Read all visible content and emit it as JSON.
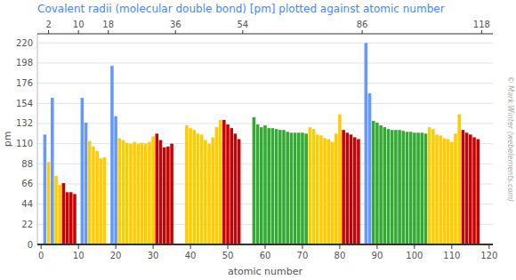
{
  "chart_data": {
    "type": "bar",
    "title": "Covalent radii (molecular double bond) [pm] plotted against atomic number",
    "x_label": "atomic number",
    "y_label": "pm",
    "annotations": [
      "© Mark Winter (webelements.com)"
    ],
    "x": [
      1,
      2,
      3,
      4,
      5,
      6,
      7,
      8,
      9,
      10,
      11,
      12,
      13,
      14,
      15,
      16,
      17,
      18,
      19,
      20,
      21,
      22,
      23,
      24,
      25,
      26,
      27,
      28,
      29,
      30,
      31,
      32,
      33,
      34,
      35,
      36,
      37,
      38,
      39,
      40,
      41,
      42,
      43,
      44,
      45,
      46,
      47,
      48,
      49,
      50,
      51,
      52,
      53,
      54,
      55,
      56,
      57,
      58,
      59,
      60,
      61,
      62,
      63,
      64,
      65,
      66,
      67,
      68,
      69,
      70,
      71,
      72,
      73,
      74,
      75,
      76,
      77,
      78,
      79,
      80,
      81,
      82,
      83,
      84,
      85,
      86,
      87,
      88,
      89,
      90,
      91,
      92,
      93,
      94,
      95,
      96,
      97,
      98,
      99,
      100,
      101,
      102,
      103,
      104,
      105,
      106,
      107,
      108,
      109,
      110,
      111,
      112,
      113,
      114,
      115,
      116,
      117,
      118
    ],
    "values": [
      120,
      90,
      160,
      75,
      65,
      67,
      57,
      57,
      55,
      0,
      160,
      133,
      113,
      107,
      102,
      94,
      95,
      0,
      195,
      140,
      116,
      114,
      111,
      110,
      112,
      110,
      111,
      110,
      112,
      118,
      121,
      114,
      106,
      107,
      110,
      0,
      0,
      0,
      130,
      127,
      125,
      121,
      120,
      114,
      110,
      117,
      128,
      136,
      136,
      131,
      127,
      121,
      115,
      0,
      0,
      0,
      139,
      131,
      128,
      130,
      127,
      127,
      126,
      125,
      125,
      123,
      122,
      122,
      122,
      122,
      121,
      128,
      126,
      120,
      119,
      116,
      115,
      112,
      121,
      142,
      125,
      122,
      120,
      117,
      115,
      0,
      220,
      165,
      135,
      133,
      130,
      128,
      126,
      125,
      125,
      125,
      124,
      123,
      123,
      122,
      122,
      122,
      121,
      128,
      126,
      120,
      119,
      116,
      115,
      112,
      121,
      142,
      125,
      122,
      120,
      117,
      115,
      0
    ],
    "colors": [
      "#6699ff",
      "#ffcc00",
      "#6699ff",
      "#ffcc00",
      "#ffcc00",
      "#cc0000",
      "#cc0000",
      "#cc0000",
      "#cc0000",
      "#6699ff",
      "#6699ff",
      "#6699ff",
      "#ffcc00",
      "#ffcc00",
      "#ffcc00",
      "#ffcc00",
      "#ffcc00",
      "#6699ff",
      "#6699ff",
      "#6699ff",
      "#ffcc00",
      "#ffcc00",
      "#ffcc00",
      "#ffcc00",
      "#ffcc00",
      "#ffcc00",
      "#ffcc00",
      "#ffcc00",
      "#ffcc00",
      "#ffcc00",
      "#cc0000",
      "#cc0000",
      "#cc0000",
      "#cc0000",
      "#cc0000",
      "#cc0000",
      "#6699ff",
      "#6699ff",
      "#ffcc00",
      "#ffcc00",
      "#ffcc00",
      "#ffcc00",
      "#ffcc00",
      "#ffcc00",
      "#ffcc00",
      "#ffcc00",
      "#ffcc00",
      "#ffcc00",
      "#cc0000",
      "#cc0000",
      "#cc0000",
      "#cc0000",
      "#cc0000",
      "#cc0000",
      "#6699ff",
      "#6699ff",
      "#33aa33",
      "#33aa33",
      "#33aa33",
      "#33aa33",
      "#33aa33",
      "#33aa33",
      "#33aa33",
      "#33aa33",
      "#33aa33",
      "#33aa33",
      "#33aa33",
      "#33aa33",
      "#33aa33",
      "#33aa33",
      "#33aa33",
      "#ffcc00",
      "#ffcc00",
      "#ffcc00",
      "#ffcc00",
      "#ffcc00",
      "#ffcc00",
      "#ffcc00",
      "#ffcc00",
      "#ffcc00",
      "#cc0000",
      "#cc0000",
      "#cc0000",
      "#cc0000",
      "#cc0000",
      "#cc0000",
      "#6699ff",
      "#6699ff",
      "#33aa33",
      "#33aa33",
      "#33aa33",
      "#33aa33",
      "#33aa33",
      "#33aa33",
      "#33aa33",
      "#33aa33",
      "#33aa33",
      "#33aa33",
      "#33aa33",
      "#33aa33",
      "#33aa33",
      "#33aa33",
      "#33aa33",
      "#ffcc00",
      "#ffcc00",
      "#ffcc00",
      "#ffcc00",
      "#ffcc00",
      "#ffcc00",
      "#ffcc00",
      "#ffcc00",
      "#ffcc00",
      "#cc0000",
      "#cc0000",
      "#cc0000",
      "#cc0000",
      "#cc0000",
      "#cc0000"
    ],
    "xlim": [
      -1,
      121
    ],
    "xticks": [
      0,
      10,
      20,
      30,
      40,
      50,
      60,
      70,
      80,
      90,
      100,
      110,
      120
    ],
    "x2lim": [
      -1,
      121
    ],
    "x2ticks": [
      2,
      10,
      18,
      36,
      54,
      86,
      118
    ],
    "ylim": [
      0,
      230
    ],
    "yticks": [
      0,
      22,
      44,
      66,
      88,
      110,
      132,
      154,
      176,
      198,
      220
    ],
    "grid": true
  }
}
